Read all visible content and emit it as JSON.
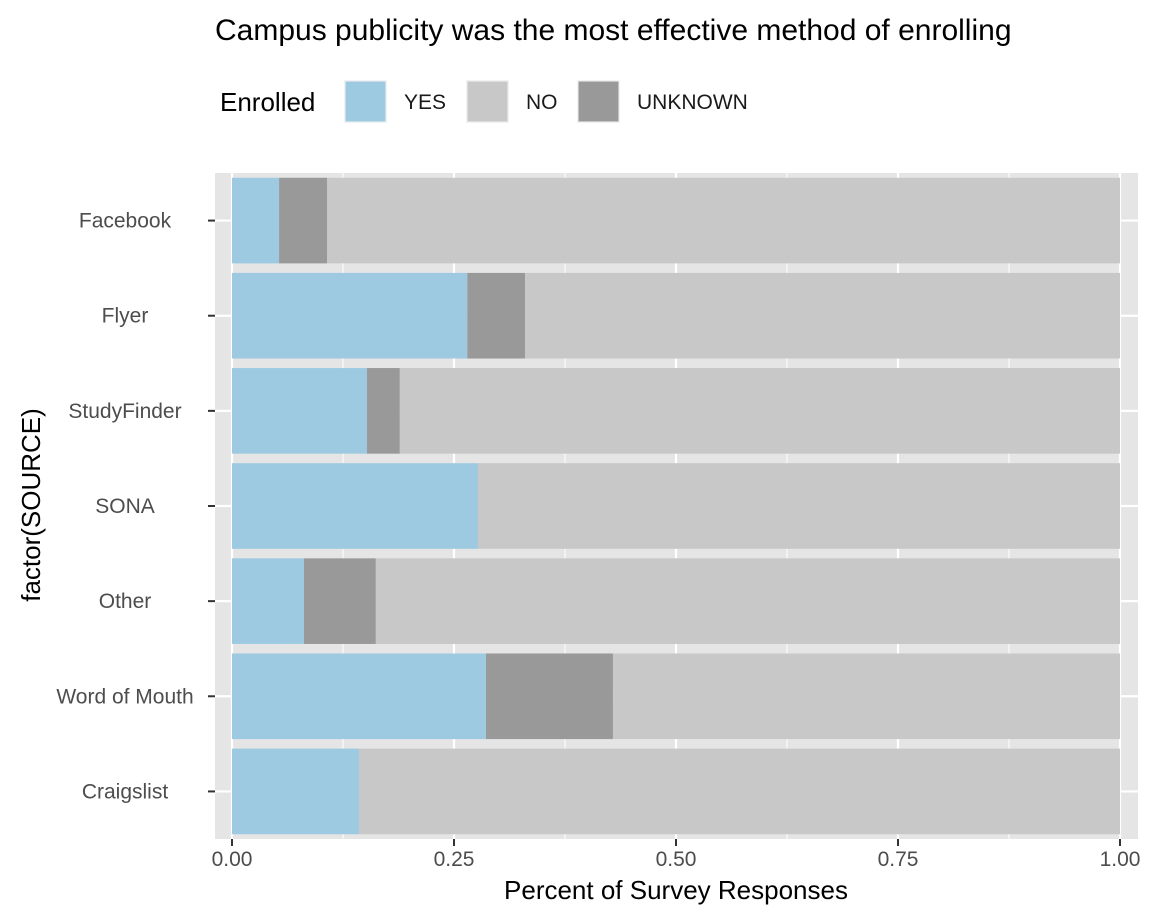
{
  "chart_data": {
    "type": "bar",
    "orientation": "horizontal",
    "stacked": true,
    "title": "Campus publicity was the most effective method of enrolling",
    "xlabel": "Percent of Survey Responses",
    "ylabel": "factor(SOURCE)",
    "xlim": [
      0,
      1
    ],
    "x_ticks": [
      "0.00",
      "0.25",
      "0.50",
      "0.75",
      "1.00"
    ],
    "grid": true,
    "legend": {
      "title": "Enrolled",
      "placement": "top",
      "entries": [
        "YES",
        "NO",
        "UNKNOWN"
      ]
    },
    "categories": [
      "Facebook",
      "Flyer",
      "StudyFinder",
      "SONA",
      "Other",
      "Word of Mouth",
      "Craigslist"
    ],
    "series": [
      {
        "name": "YES",
        "color": "#9ecae1",
        "values": [
          0.053,
          0.265,
          0.152,
          0.277,
          0.081,
          0.286,
          0.143
        ]
      },
      {
        "name": "UNKNOWN",
        "color": "#999999",
        "values": [
          0.054,
          0.065,
          0.037,
          0.0,
          0.081,
          0.143,
          0.0
        ]
      },
      {
        "name": "NO",
        "color": "#c8c8c8",
        "values": [
          0.893,
          0.67,
          0.811,
          0.723,
          0.838,
          0.571,
          0.857
        ]
      }
    ],
    "colors": {
      "panel_background": "#e5e5e5",
      "grid": "#ffffff"
    }
  }
}
